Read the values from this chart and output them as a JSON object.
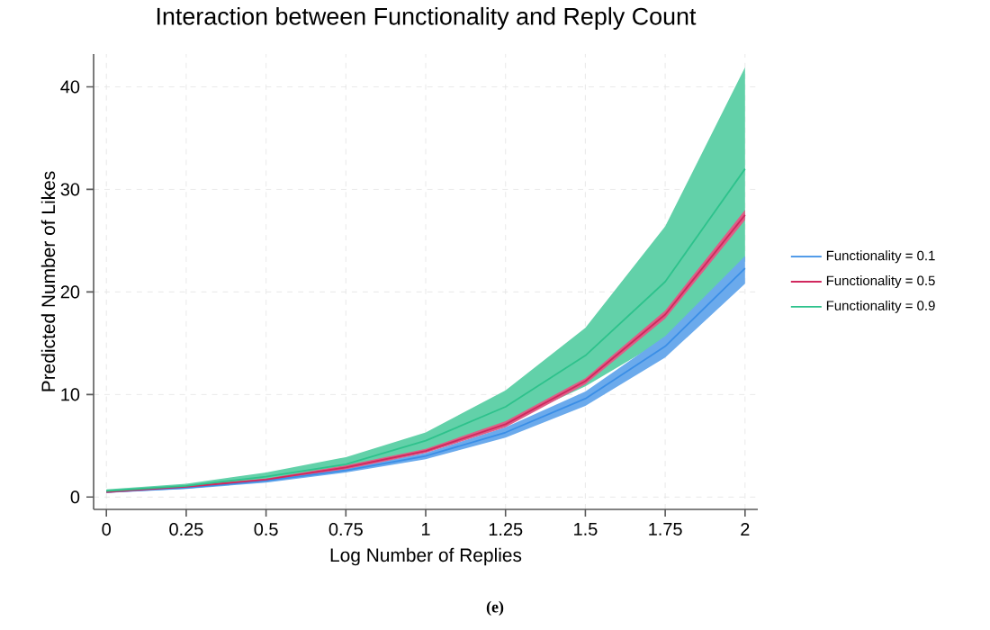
{
  "chart_data": {
    "type": "line",
    "title": "Interaction between Functionality and Reply Count",
    "xlabel": "Log Number of Replies",
    "ylabel": "Predicted Number of Likes",
    "annotations": [
      "(e)"
    ],
    "x": [
      0,
      0.25,
      0.5,
      0.75,
      1,
      1.25,
      1.5,
      1.75,
      2
    ],
    "series": [
      {
        "name": "Functionality = 0.1",
        "color": "#3a8ee6",
        "values": [
          0.5,
          0.9,
          1.6,
          2.6,
          4.0,
          6.3,
          9.6,
          14.7,
          22.3
        ],
        "lower": [
          0.4,
          0.8,
          1.4,
          2.4,
          3.7,
          5.8,
          8.9,
          13.6,
          20.8
        ],
        "upper": [
          0.5,
          0.95,
          1.7,
          2.8,
          4.3,
          6.8,
          10.3,
          15.7,
          23.5
        ]
      },
      {
        "name": "Functionality = 0.5",
        "color": "#d1285e",
        "values": [
          0.5,
          1.0,
          1.7,
          2.9,
          4.5,
          7.1,
          11.3,
          17.8,
          27.5
        ],
        "lower": [
          0.4,
          0.9,
          1.6,
          2.7,
          4.3,
          6.8,
          11.0,
          17.4,
          27.0
        ],
        "upper": [
          0.6,
          1.1,
          1.8,
          3.1,
          4.7,
          7.4,
          11.6,
          18.2,
          28.0
        ]
      },
      {
        "name": "Functionality = 0.9",
        "color": "#2ec28c",
        "values": [
          0.6,
          1.1,
          2.0,
          3.2,
          5.5,
          8.8,
          13.8,
          21.0,
          32.0
        ],
        "lower": [
          0.5,
          0.95,
          1.7,
          2.7,
          4.6,
          7.2,
          10.8,
          15.4,
          23.0
        ],
        "upper": [
          0.75,
          1.3,
          2.4,
          3.9,
          6.3,
          10.4,
          16.5,
          26.4,
          41.9
        ]
      }
    ],
    "xlim": [
      -0.04,
      2.04
    ],
    "ylim": [
      -1.2,
      43.2
    ],
    "xticks": [
      0,
      0.25,
      0.5,
      0.75,
      1,
      1.25,
      1.5,
      1.75,
      2
    ],
    "yticks": [
      0,
      10,
      20,
      30,
      40
    ],
    "grid": true,
    "legend": "right",
    "marker": "none",
    "line_style": "solid"
  }
}
